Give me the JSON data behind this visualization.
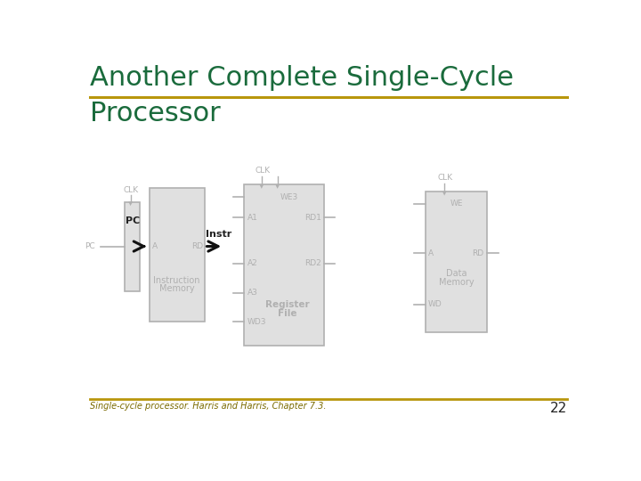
{
  "title_line1": "Another Complete Single-Cycle",
  "title_line2": "Processor",
  "title_color": "#1a6b3c",
  "title_fontsize": 22,
  "subtitle_fontsize": 22,
  "separator_color": "#b8960c",
  "footer_text": "Single-cycle processor. Harris and Harris, Chapter 7.3.",
  "footer_number": "22",
  "footer_color": "#7a6a00",
  "bg_color": "#ffffff",
  "box_fc": "#e0e0e0",
  "box_ec": "#b0b0b0",
  "text_color": "#b0b0b0",
  "dark_text": "#222222",
  "arrow_color": "#111111",
  "line_color": "#b0b0b0"
}
